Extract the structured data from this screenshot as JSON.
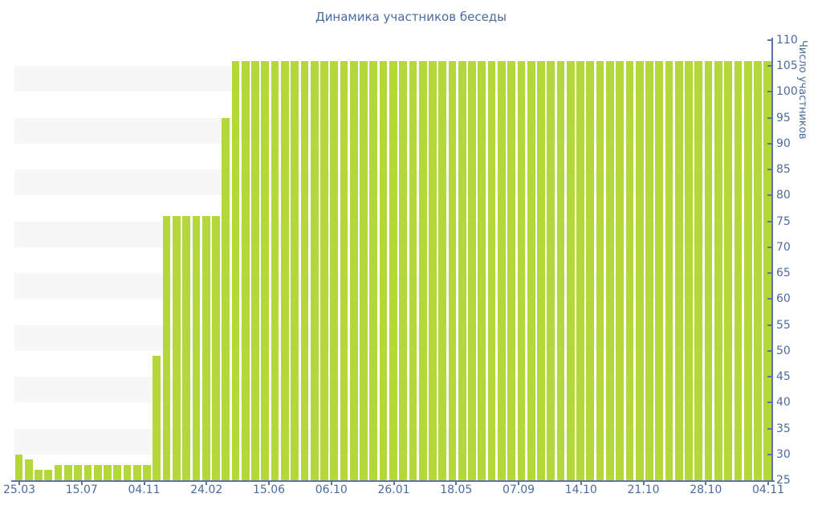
{
  "chart_data": {
    "type": "bar",
    "title": "Динамика участников беседы",
    "xlabel": "",
    "ylabel": "Число участников",
    "y_axis": {
      "min": 25,
      "max": 110,
      "step": 5,
      "side": "right"
    },
    "x_tick_labels": [
      "25.03",
      "15.07",
      "04.11",
      "24.02",
      "15.06",
      "06.10",
      "26.01",
      "18.05",
      "07.09",
      "14.10",
      "21.10",
      "28.10",
      "04.11"
    ],
    "values": [
      30,
      29,
      27,
      27,
      28,
      28,
      28,
      28,
      28,
      28,
      28,
      28,
      28,
      28,
      49,
      76,
      76,
      76,
      76,
      76,
      76,
      95,
      106,
      106,
      106,
      106,
      106,
      106,
      106,
      106,
      106,
      106,
      106,
      106,
      106,
      106,
      106,
      106,
      106,
      106,
      106,
      106,
      106,
      106,
      106,
      106,
      106,
      106,
      106,
      106,
      106,
      106,
      106,
      106,
      106,
      106,
      106,
      106,
      106,
      106,
      106,
      106,
      106,
      106,
      106,
      106,
      106,
      106,
      106,
      106,
      106,
      106,
      106,
      106,
      106,
      106,
      106
    ],
    "legend": "none",
    "grid": {
      "horizontal_bands": true,
      "band_step": 5
    },
    "colors": {
      "bar": "#b4d83a",
      "band": "#f7f7f7",
      "axis": "#5e74a8",
      "text": "#4b6b9d",
      "background": "#ffffff"
    }
  }
}
